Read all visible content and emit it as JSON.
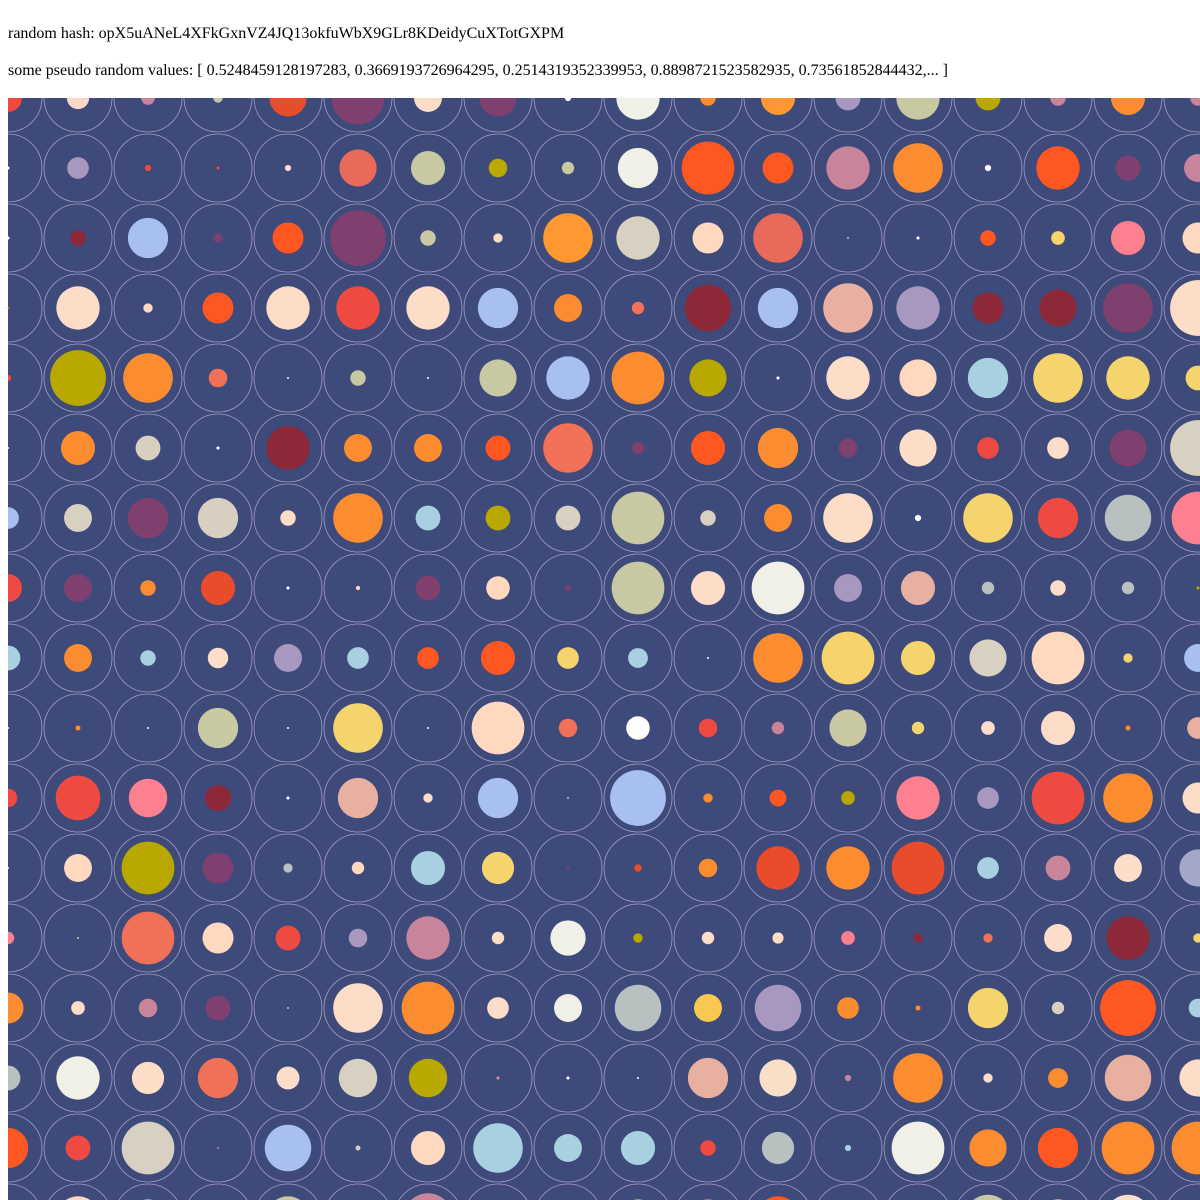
{
  "hash": {
    "label": "random hash:",
    "value": "opX5uANeL4XFkGxnVZ4JQ13okfuWbX9GLr8KDeidyCuXTotGXPM"
  },
  "values": {
    "label": "some pseudo random values:",
    "text": "[ 0.5248459128197283, 0.3669193726964295, 0.2514319352339953, 0.8898721523582935, 0.73561852844432,... ]"
  },
  "artwork": {
    "background_color": "#3d4a7a",
    "ring_color": "#c9b8d8",
    "palette": {
      "a": "#ee4a42",
      "b": "#fad8c8",
      "c": "#c8849a",
      "d": "#c8c8a2",
      "e": "#e84c2a",
      "f": "#7f4070",
      "g": "#fddcc8",
      "h": "#ff9830",
      "i": "#f0f0e6",
      "j": "#b8a800",
      "k": "#ffffff",
      "l": "#fb8c2f",
      "m": "#f07058",
      "n": "#fe5722",
      "o": "#a3a8c8",
      "p": "#e84040",
      "q": "#a8c0ef",
      "r": "#7f2a40",
      "s": "#ffd8c0",
      "t": "#b8d0e8",
      "u": "#f8c850",
      "v": "#fd8090",
      "w": "#e8b0a0",
      "x": "#a8d0e0",
      "y": "#f5d46e",
      "z": "#c0b4b0",
      "A": "#a898c0",
      "B": "#8c2838",
      "C": "#fadfc8",
      "D": "#b8c0c0",
      "E": "#e86a5a",
      "F": "#ffa040",
      "G": "#d8cfc0",
      "H": "#d8d0c0"
    },
    "rows": [
      [
        [
          "a",
          0.45
        ],
        [
          "b",
          0.36
        ],
        [
          "c",
          0.22
        ],
        [
          "d",
          0.15
        ],
        [
          "e",
          0.6
        ],
        [
          "f",
          0.85
        ],
        [
          "g",
          0.45
        ],
        [
          "f",
          0.6
        ],
        [
          "k",
          0.1
        ],
        [
          "i",
          0.7
        ],
        [
          "l",
          0.25
        ],
        [
          "h",
          0.55
        ],
        [
          "A",
          0.4
        ],
        [
          "d",
          0.7
        ],
        [
          "j",
          0.4
        ],
        [
          "c",
          0.25
        ],
        [
          "l",
          0.55
        ],
        [
          "c",
          0.25
        ]
      ],
      [
        [
          "k",
          0.05
        ],
        [
          "A",
          0.35
        ],
        [
          "a",
          0.1
        ],
        [
          "a",
          0.05
        ],
        [
          "g",
          0.1
        ],
        [
          "E",
          0.6
        ],
        [
          "d",
          0.55
        ],
        [
          "j",
          0.3
        ],
        [
          "d",
          0.2
        ],
        [
          "i",
          0.65
        ],
        [
          "n",
          0.85
        ],
        [
          "n",
          0.5
        ],
        [
          "c",
          0.7
        ],
        [
          "l",
          0.8
        ],
        [
          "k",
          0.1
        ],
        [
          "n",
          0.7
        ],
        [
          "f",
          0.4
        ],
        [
          "c",
          0.45
        ]
      ],
      [
        [
          "k",
          0.05
        ],
        [
          "B",
          0.25
        ],
        [
          "q",
          0.65
        ],
        [
          "f",
          0.15
        ],
        [
          "n",
          0.5
        ],
        [
          "f",
          0.9
        ],
        [
          "d",
          0.25
        ],
        [
          "g",
          0.15
        ],
        [
          "h",
          0.8
        ],
        [
          "H",
          0.7
        ],
        [
          "s",
          0.5
        ],
        [
          "E",
          0.8
        ],
        [
          "d",
          0.03
        ],
        [
          "k",
          0.05
        ],
        [
          "n",
          0.25
        ],
        [
          "y",
          0.22
        ],
        [
          "v",
          0.55
        ],
        [
          "s",
          0.5
        ]
      ],
      [
        [
          "a",
          0.05
        ],
        [
          "g",
          0.7
        ],
        [
          "s",
          0.15
        ],
        [
          "n",
          0.5
        ],
        [
          "g",
          0.7
        ],
        [
          "a",
          0.7
        ],
        [
          "g",
          0.7
        ],
        [
          "q",
          0.65
        ],
        [
          "l",
          0.45
        ],
        [
          "m",
          0.2
        ],
        [
          "B",
          0.75
        ],
        [
          "q",
          0.65
        ],
        [
          "w",
          0.8
        ],
        [
          "A",
          0.7
        ],
        [
          "B",
          0.5
        ],
        [
          "B",
          0.6
        ],
        [
          "f",
          0.8
        ],
        [
          "g",
          0.9
        ]
      ],
      [
        [
          "a",
          0.1
        ],
        [
          "j",
          0.9
        ],
        [
          "l",
          0.8
        ],
        [
          "m",
          0.3
        ],
        [
          "k",
          0.02
        ],
        [
          "d",
          0.25
        ],
        [
          "k",
          0.03
        ],
        [
          "d",
          0.6
        ],
        [
          "q",
          0.7
        ],
        [
          "l",
          0.85
        ],
        [
          "j",
          0.6
        ],
        [
          "k",
          0.05
        ],
        [
          "g",
          0.7
        ],
        [
          "s",
          0.6
        ],
        [
          "x",
          0.65
        ],
        [
          "y",
          0.8
        ],
        [
          "y",
          0.7
        ],
        [
          "y",
          0.4
        ]
      ],
      [
        [
          "k",
          0.02
        ],
        [
          "l",
          0.55
        ],
        [
          "G",
          0.4
        ],
        [
          "k",
          0.05
        ],
        [
          "B",
          0.7
        ],
        [
          "l",
          0.45
        ],
        [
          "l",
          0.45
        ],
        [
          "n",
          0.4
        ],
        [
          "m",
          0.8
        ],
        [
          "f",
          0.2
        ],
        [
          "n",
          0.55
        ],
        [
          "l",
          0.65
        ],
        [
          "f",
          0.3
        ],
        [
          "g",
          0.6
        ],
        [
          "a",
          0.35
        ],
        [
          "g",
          0.35
        ],
        [
          "f",
          0.6
        ],
        [
          "H",
          0.9
        ]
      ],
      [
        [
          "q",
          0.35
        ],
        [
          "H",
          0.45
        ],
        [
          "f",
          0.65
        ],
        [
          "G",
          0.65
        ],
        [
          "g",
          0.25
        ],
        [
          "l",
          0.8
        ],
        [
          "x",
          0.4
        ],
        [
          "j",
          0.4
        ],
        [
          "H",
          0.4
        ],
        [
          "d",
          0.85
        ],
        [
          "H",
          0.25
        ],
        [
          "l",
          0.45
        ],
        [
          "g",
          0.8
        ],
        [
          "k",
          0.1
        ],
        [
          "y",
          0.8
        ],
        [
          "a",
          0.65
        ],
        [
          "D",
          0.75
        ],
        [
          "v",
          0.85
        ]
      ],
      [
        [
          "a",
          0.45
        ],
        [
          "f",
          0.45
        ],
        [
          "l",
          0.25
        ],
        [
          "e",
          0.55
        ],
        [
          "k",
          0.05
        ],
        [
          "s",
          0.07
        ],
        [
          "f",
          0.4
        ],
        [
          "s",
          0.38
        ],
        [
          "f",
          0.1
        ],
        [
          "d",
          0.85
        ],
        [
          "g",
          0.55
        ],
        [
          "i",
          0.85
        ],
        [
          "A",
          0.45
        ],
        [
          "w",
          0.55
        ],
        [
          "D",
          0.2
        ],
        [
          "g",
          0.25
        ],
        [
          "D",
          0.2
        ],
        [
          "j",
          0.05
        ]
      ],
      [
        [
          "x",
          0.4
        ],
        [
          "l",
          0.45
        ],
        [
          "x",
          0.25
        ],
        [
          "g",
          0.33
        ],
        [
          "A",
          0.45
        ],
        [
          "x",
          0.35
        ],
        [
          "n",
          0.35
        ],
        [
          "n",
          0.55
        ],
        [
          "y",
          0.35
        ],
        [
          "x",
          0.32
        ],
        [
          "k",
          0.03
        ],
        [
          "l",
          0.8
        ],
        [
          "y",
          0.85
        ],
        [
          "y",
          0.55
        ],
        [
          "H",
          0.6
        ],
        [
          "s",
          0.85
        ],
        [
          "y",
          0.15
        ],
        [
          "q",
          0.45
        ]
      ],
      [
        [
          "k",
          0.01
        ],
        [
          "l",
          0.08
        ],
        [
          "k",
          0.02
        ],
        [
          "d",
          0.65
        ],
        [
          "k",
          0.01
        ],
        [
          "y",
          0.8
        ],
        [
          "k",
          0.02
        ],
        [
          "s",
          0.85
        ],
        [
          "m",
          0.3
        ],
        [
          "k",
          0.38
        ],
        [
          "a",
          0.3
        ],
        [
          "c",
          0.2
        ],
        [
          "d",
          0.6
        ],
        [
          "y",
          0.2
        ],
        [
          "g",
          0.22
        ],
        [
          "g",
          0.55
        ],
        [
          "l",
          0.08
        ],
        [
          "w",
          0.35
        ]
      ],
      [
        [
          "a",
          0.3
        ],
        [
          "a",
          0.72
        ],
        [
          "v",
          0.62
        ],
        [
          "B",
          0.42
        ],
        [
          "k",
          0.05
        ],
        [
          "w",
          0.65
        ],
        [
          "g",
          0.15
        ],
        [
          "q",
          0.65
        ],
        [
          "d",
          0.02
        ],
        [
          "q",
          0.9
        ],
        [
          "l",
          0.15
        ],
        [
          "n",
          0.27
        ],
        [
          "j",
          0.22
        ],
        [
          "v",
          0.7
        ],
        [
          "A",
          0.35
        ],
        [
          "a",
          0.85
        ],
        [
          "l",
          0.8
        ],
        [
          "g",
          0.5
        ]
      ],
      [
        [
          "k",
          0.01
        ],
        [
          "s",
          0.45
        ],
        [
          "j",
          0.85
        ],
        [
          "f",
          0.5
        ],
        [
          "D",
          0.15
        ],
        [
          "s",
          0.2
        ],
        [
          "x",
          0.55
        ],
        [
          "y",
          0.52
        ],
        [
          "f",
          0.05
        ],
        [
          "e",
          0.12
        ],
        [
          "l",
          0.3
        ],
        [
          "e",
          0.7
        ],
        [
          "l",
          0.7
        ],
        [
          "e",
          0.85
        ],
        [
          "x",
          0.35
        ],
        [
          "c",
          0.4
        ],
        [
          "g",
          0.45
        ],
        [
          "o",
          0.6
        ]
      ],
      [
        [
          "v",
          0.2
        ],
        [
          "d",
          0.01
        ],
        [
          "m",
          0.85
        ],
        [
          "s",
          0.5
        ],
        [
          "a",
          0.4
        ],
        [
          "A",
          0.3
        ],
        [
          "c",
          0.7
        ],
        [
          "g",
          0.2
        ],
        [
          "i",
          0.57
        ],
        [
          "j",
          0.15
        ],
        [
          "g",
          0.2
        ],
        [
          "g",
          0.18
        ],
        [
          "v",
          0.22
        ],
        [
          "B",
          0.15
        ],
        [
          "m",
          0.15
        ],
        [
          "g",
          0.45
        ],
        [
          "B",
          0.7
        ],
        [
          "y",
          0.15
        ]
      ],
      [
        [
          "l",
          0.5
        ],
        [
          "g",
          0.22
        ],
        [
          "c",
          0.3
        ],
        [
          "f",
          0.4
        ],
        [
          "d",
          0.01
        ],
        [
          "g",
          0.8
        ],
        [
          "l",
          0.85
        ],
        [
          "g",
          0.35
        ],
        [
          "i",
          0.45
        ],
        [
          "D",
          0.75
        ],
        [
          "u",
          0.45
        ],
        [
          "A",
          0.75
        ],
        [
          "l",
          0.35
        ],
        [
          "l",
          0.08
        ],
        [
          "y",
          0.65
        ],
        [
          "G",
          0.2
        ],
        [
          "n",
          0.9
        ],
        [
          "x",
          0.3
        ]
      ],
      [
        [
          "D",
          0.4
        ],
        [
          "i",
          0.7
        ],
        [
          "g",
          0.52
        ],
        [
          "m",
          0.65
        ],
        [
          "g",
          0.37
        ],
        [
          "H",
          0.62
        ],
        [
          "j",
          0.62
        ],
        [
          "v",
          0.05
        ],
        [
          "k",
          0.05
        ],
        [
          "k",
          0.02
        ],
        [
          "w",
          0.65
        ],
        [
          "C",
          0.6
        ],
        [
          "c",
          0.1
        ],
        [
          "l",
          0.8
        ],
        [
          "g",
          0.15
        ],
        [
          "l",
          0.32
        ],
        [
          "w",
          0.75
        ],
        [
          "g",
          0.6
        ]
      ],
      [
        [
          "n",
          0.65
        ],
        [
          "a",
          0.4
        ],
        [
          "H",
          0.85
        ],
        [
          "c",
          0.02
        ],
        [
          "q",
          0.75
        ],
        [
          "H",
          0.08
        ],
        [
          "s",
          0.55
        ],
        [
          "x",
          0.8
        ],
        [
          "x",
          0.45
        ],
        [
          "x",
          0.55
        ],
        [
          "a",
          0.25
        ],
        [
          "D",
          0.52
        ],
        [
          "x",
          0.1
        ],
        [
          "i",
          0.85
        ],
        [
          "l",
          0.6
        ],
        [
          "n",
          0.65
        ],
        [
          "l",
          0.85
        ],
        [
          "l",
          0.85
        ]
      ],
      [
        [
          "g",
          0.5
        ],
        [
          "s",
          0.7
        ],
        [
          "x",
          0.6
        ],
        [
          "A",
          0.5
        ],
        [
          "d",
          0.7
        ],
        [
          "y",
          0.5
        ],
        [
          "c",
          0.8
        ],
        [
          "a",
          0.55
        ],
        [
          "u",
          0.35
        ],
        [
          "d",
          0.6
        ],
        [
          "v",
          0.6
        ],
        [
          "n",
          0.7
        ],
        [
          "a",
          0.5
        ],
        [
          "s",
          0.4
        ],
        [
          "d",
          0.75
        ],
        [
          "y",
          0.6
        ],
        [
          "g",
          0.75
        ],
        [
          "c",
          0.5
        ]
      ]
    ]
  }
}
